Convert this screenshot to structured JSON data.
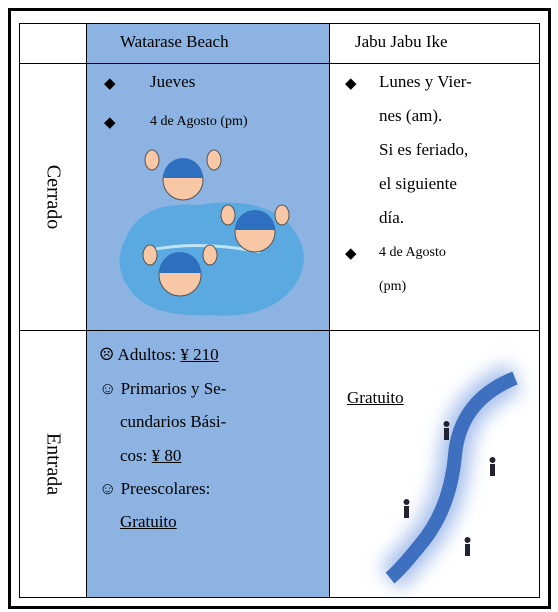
{
  "table": {
    "header": [
      "Watarase Beach",
      "Jabu Jabu Ike"
    ],
    "rows": [
      {
        "label": "Cerrado",
        "watarase": [
          "Jueves",
          "4 de Agosto (pm)"
        ],
        "jabu": [
          [
            "Lunes y Vier-",
            "nes (am).",
            "Si es feriado,",
            "el siguiente",
            "día."
          ],
          [
            "4 de Agosto",
            "(pm)"
          ]
        ]
      },
      {
        "label": "Entrada",
        "watarase": {
          "adults": "☹ Adultos: ",
          "adults_price": "¥ 210",
          "students": [
            "☺ Primarios y Se-",
            "cundarios Bási-",
            "cos: "
          ],
          "students_price": "¥ 80",
          "preschool": "☺ Preescolares:",
          "preschool_price": "Gratuito"
        },
        "jabu": "Gratuito"
      }
    ]
  }
}
